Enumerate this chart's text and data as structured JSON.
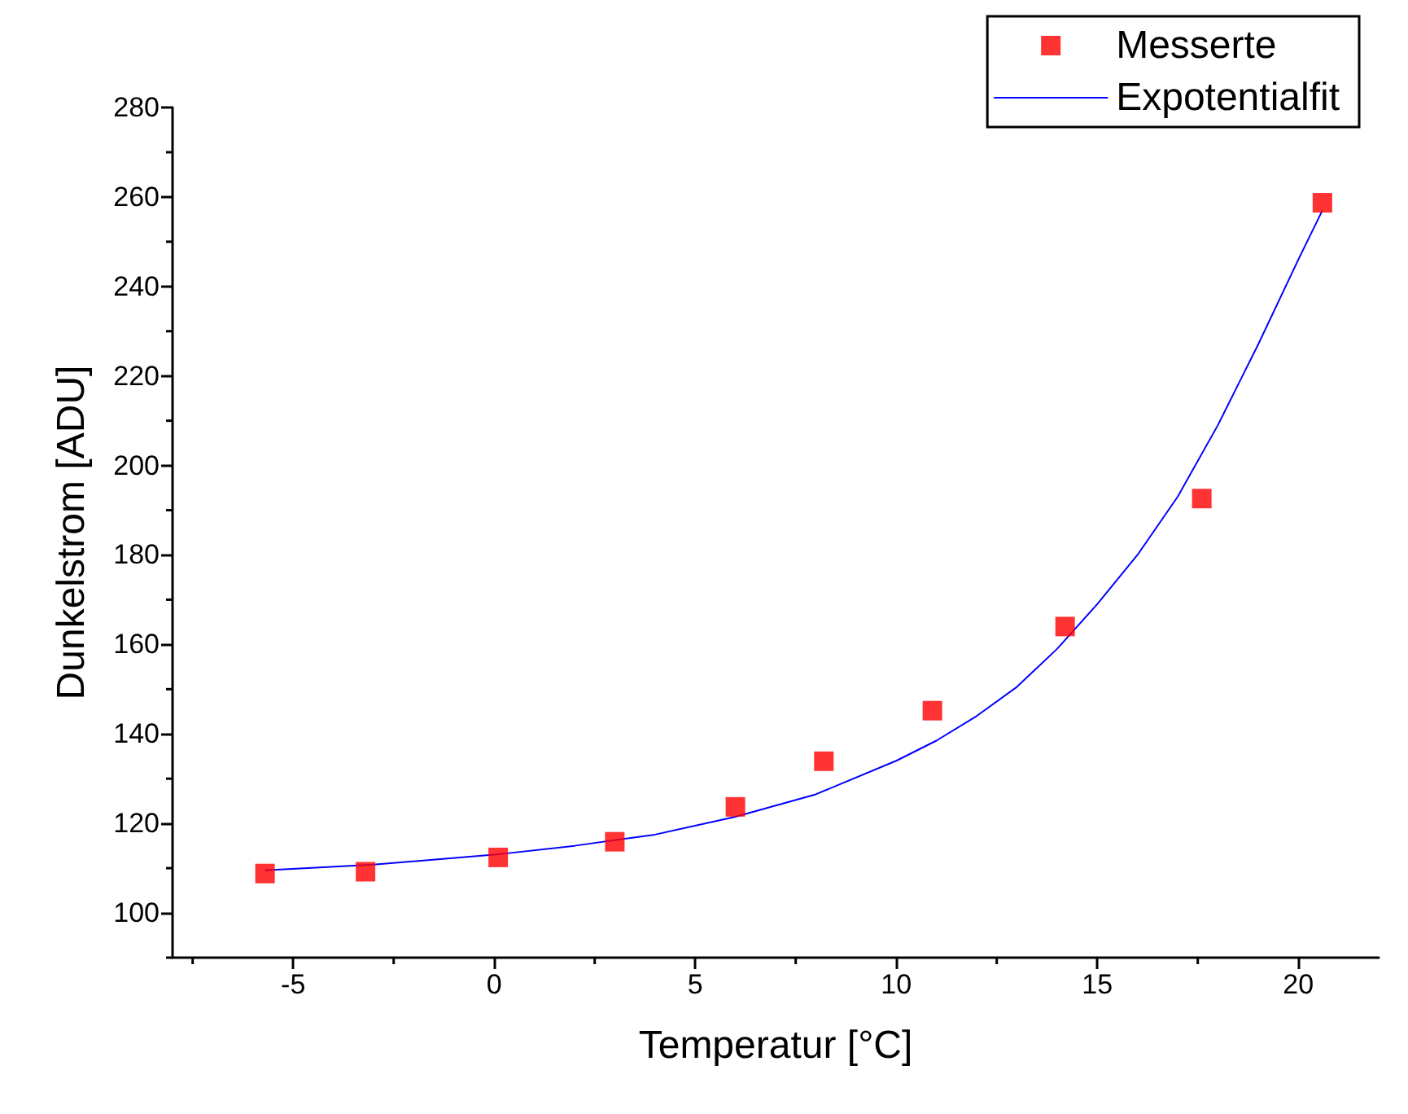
{
  "chart_data": {
    "type": "scatter",
    "xlabel": "Temperatur [°C]",
    "ylabel": "Dunkelstrom [ADU]",
    "xlim": [
      -8,
      22
    ],
    "xticks": [
      -5,
      0,
      5,
      10,
      15,
      20
    ],
    "ylim": [
      90,
      280
    ],
    "yticks": [
      100,
      120,
      140,
      160,
      180,
      200,
      220,
      240,
      260,
      280
    ],
    "grid": false,
    "legend": "top right",
    "series": [
      {
        "name": "Messerte",
        "type": "scatter",
        "marker": "square",
        "color": "#ff0000",
        "x": [
          -5.7,
          -3.2,
          0.1,
          3.0,
          6.0,
          8.2,
          10.9,
          14.2,
          17.6,
          20.6
        ],
        "values": [
          108.8,
          109.2,
          112.4,
          115.9,
          123.7,
          133.9,
          145.2,
          164.0,
          192.6,
          258.7
        ]
      },
      {
        "name": "Expotentialfit",
        "type": "line",
        "marker": "none",
        "line_style": "solid",
        "color": "#0000ff",
        "x": [
          -5.7,
          -3,
          0,
          2,
          4,
          6,
          8,
          10,
          11,
          12,
          13,
          14,
          15,
          16,
          17,
          18,
          19,
          20,
          20.6
        ],
        "values": [
          109.5,
          110.8,
          113,
          115,
          117.5,
          121.5,
          126.5,
          134,
          138.5,
          144,
          150.5,
          159,
          169,
          180,
          193,
          209,
          227,
          246,
          257
        ]
      }
    ]
  }
}
